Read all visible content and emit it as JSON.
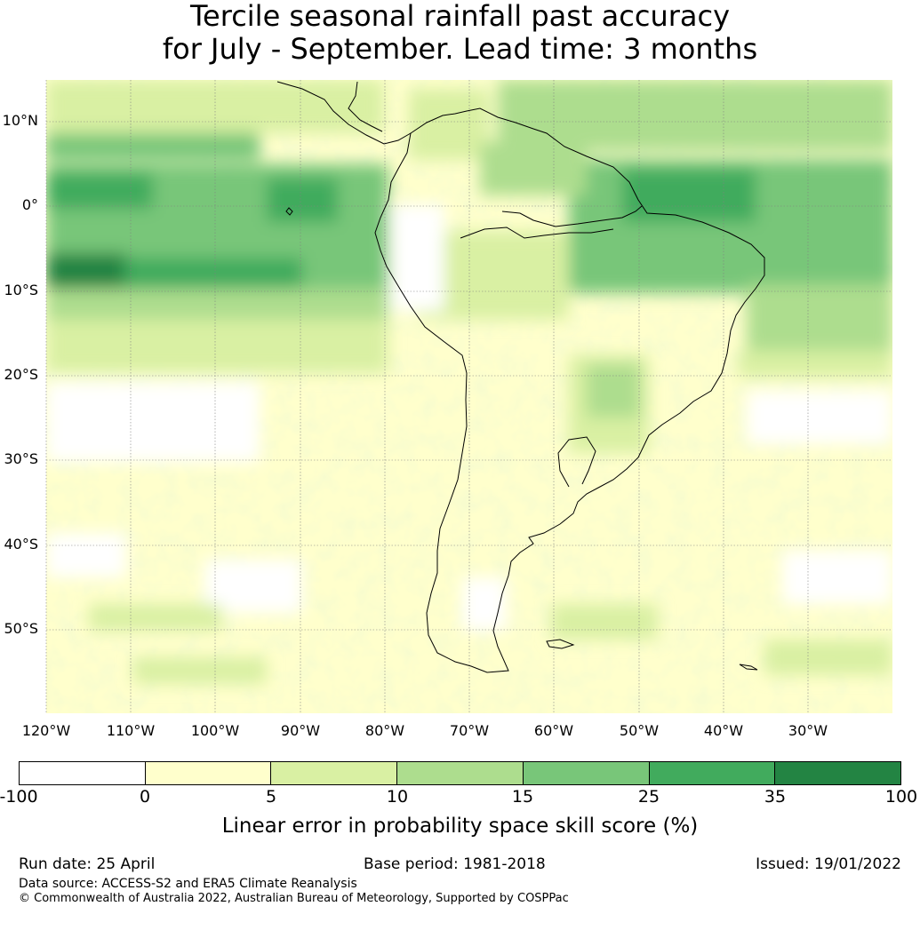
{
  "title": {
    "line1": "Tercile seasonal rainfall past accuracy",
    "line2": "for July - September. Lead time: 3 months"
  },
  "map": {
    "region": "South America",
    "lat_labels": [
      "10°N",
      "0°",
      "10°S",
      "20°S",
      "30°S",
      "40°S",
      "50°S"
    ],
    "lon_labels": [
      "120°W",
      "110°W",
      "100°W",
      "90°W",
      "80°W",
      "70°W",
      "60°W",
      "50°W",
      "40°W",
      "30°W"
    ],
    "land_color": "#ffffff",
    "coastline_color": "#000000"
  },
  "colorbar": {
    "ticks": [
      "-100",
      "0",
      "5",
      "10",
      "15",
      "25",
      "35",
      "100"
    ],
    "colors": [
      "#ffffff",
      "#ffffcc",
      "#d9f0a3",
      "#addd8e",
      "#78c679",
      "#41ab5d",
      "#238443"
    ],
    "label": "Linear error in probability space skill score (%)"
  },
  "footer": {
    "run_date": "Run date: 25 April",
    "base_period": "Base period: 1981-2018",
    "issued": "Issued: 19/01/2022",
    "data_source": "Data source: ACCESS-S2 and ERA5 Climate Reanalysis",
    "copyright": "© Commonwealth of Australia 2022, Australian Bureau of Meteorology, Supported by COSPPac"
  }
}
